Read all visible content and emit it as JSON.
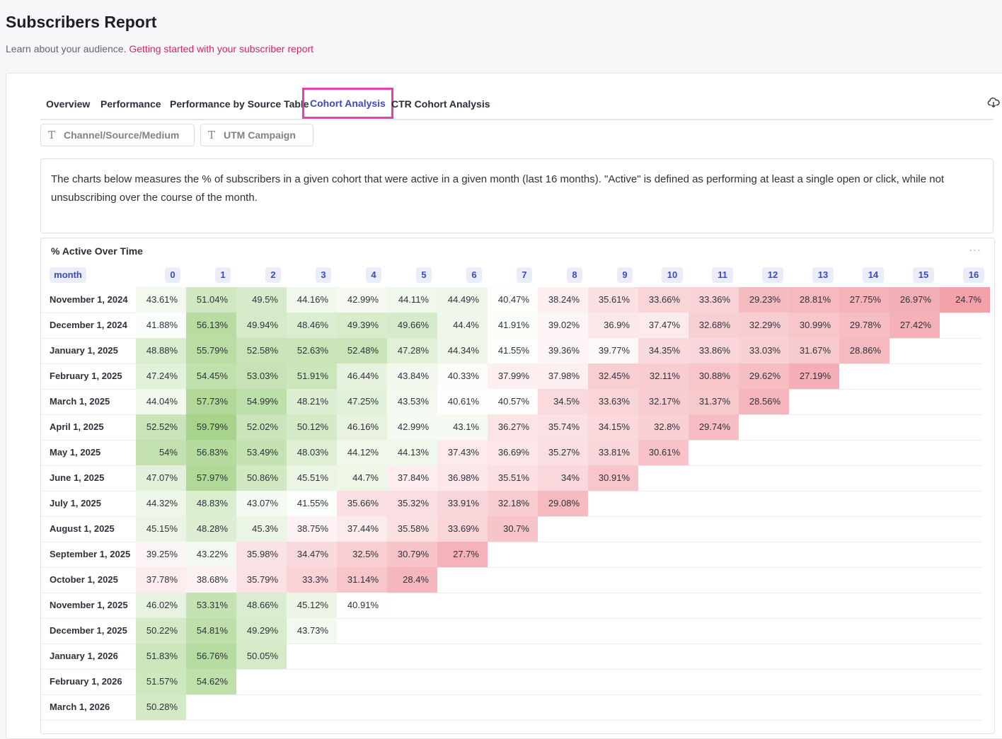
{
  "header": {
    "title": "Subscribers Report",
    "subtitle": "Learn about your audience.",
    "help_link": "Getting started with your subscriber report"
  },
  "tabs": [
    {
      "label": "Overview",
      "active": false
    },
    {
      "label": "Performance",
      "active": false
    },
    {
      "label": "Performance by Source Table",
      "active": false
    },
    {
      "label": "Cohort Analysis",
      "active": true
    },
    {
      "label": "CTR Cohort Analysis",
      "active": false
    }
  ],
  "toolbar": {
    "download_icon": "cloud-download-icon"
  },
  "filters": [
    {
      "placeholder": "Channel/Source/Medium",
      "icon": "text-type-icon"
    },
    {
      "placeholder": "UTM Campaign",
      "icon": "text-type-icon"
    }
  ],
  "description": "The charts below measures the % of subscribers in a given cohort that were active in a given month (last 16 months). \"Active\" is defined as performing at least a single open or click, while not unsubscribing over the course of the month.",
  "colors": {
    "accent": "#3f4bb5",
    "link": "#d6246e",
    "active_tab_outline": "#ec3fa9",
    "high": "#a9d48a",
    "mid": "#ffffff",
    "low": "#f2a0a8"
  },
  "chart_data": {
    "type": "heatmap",
    "title": "% Active Over Time",
    "row_header": "month",
    "columns": [
      "0",
      "1",
      "2",
      "3",
      "4",
      "5",
      "6",
      "7",
      "8",
      "9",
      "10",
      "11",
      "12",
      "13",
      "14",
      "15",
      "16"
    ],
    "rows": [
      {
        "label": "November 1, 2024",
        "values": [
          "43.61%",
          "51.04%",
          "49.5%",
          "44.16%",
          "42.99%",
          "44.11%",
          "44.49%",
          "40.47%",
          "38.24%",
          "35.61%",
          "33.66%",
          "33.36%",
          "29.23%",
          "28.81%",
          "27.75%",
          "26.97%",
          "24.7%"
        ]
      },
      {
        "label": "December 1, 2024",
        "values": [
          "41.88%",
          "56.13%",
          "49.94%",
          "48.46%",
          "49.39%",
          "49.66%",
          "44.4%",
          "41.91%",
          "39.02%",
          "36.9%",
          "37.47%",
          "32.68%",
          "32.29%",
          "30.99%",
          "29.78%",
          "27.42%"
        ]
      },
      {
        "label": "January 1, 2025",
        "values": [
          "48.88%",
          "55.79%",
          "52.58%",
          "52.63%",
          "52.48%",
          "47.28%",
          "44.34%",
          "41.55%",
          "39.36%",
          "39.77%",
          "34.35%",
          "33.86%",
          "33.03%",
          "31.67%",
          "28.86%"
        ]
      },
      {
        "label": "February 1, 2025",
        "values": [
          "47.24%",
          "54.45%",
          "53.03%",
          "51.91%",
          "46.44%",
          "43.84%",
          "40.33%",
          "37.99%",
          "37.98%",
          "32.45%",
          "32.11%",
          "30.88%",
          "29.62%",
          "27.19%"
        ]
      },
      {
        "label": "March 1, 2025",
        "values": [
          "44.04%",
          "57.73%",
          "54.99%",
          "48.21%",
          "47.25%",
          "43.53%",
          "40.61%",
          "40.57%",
          "34.5%",
          "33.63%",
          "32.17%",
          "31.37%",
          "28.56%"
        ]
      },
      {
        "label": "April 1, 2025",
        "values": [
          "52.52%",
          "59.79%",
          "52.02%",
          "50.12%",
          "46.16%",
          "42.99%",
          "43.1%",
          "36.27%",
          "35.74%",
          "34.15%",
          "32.8%",
          "29.74%"
        ]
      },
      {
        "label": "May 1, 2025",
        "values": [
          "54%",
          "56.83%",
          "53.49%",
          "48.03%",
          "44.12%",
          "44.13%",
          "37.43%",
          "36.69%",
          "35.27%",
          "33.81%",
          "30.61%"
        ]
      },
      {
        "label": "June 1, 2025",
        "values": [
          "47.07%",
          "57.97%",
          "50.86%",
          "45.51%",
          "44.7%",
          "37.84%",
          "36.98%",
          "35.51%",
          "34%",
          "30.91%"
        ]
      },
      {
        "label": "July 1, 2025",
        "values": [
          "44.32%",
          "48.83%",
          "43.07%",
          "41.55%",
          "35.66%",
          "35.32%",
          "33.91%",
          "32.18%",
          "29.08%"
        ]
      },
      {
        "label": "August 1, 2025",
        "values": [
          "45.15%",
          "48.28%",
          "45.3%",
          "38.75%",
          "37.44%",
          "35.58%",
          "33.69%",
          "30.7%"
        ]
      },
      {
        "label": "September 1, 2025",
        "values": [
          "39.25%",
          "43.22%",
          "35.98%",
          "34.47%",
          "32.5%",
          "30.79%",
          "27.7%"
        ]
      },
      {
        "label": "October 1, 2025",
        "values": [
          "37.78%",
          "38.68%",
          "35.79%",
          "33.3%",
          "31.14%",
          "28.4%"
        ]
      },
      {
        "label": "November 1, 2025",
        "values": [
          "46.02%",
          "53.31%",
          "48.66%",
          "45.12%",
          "40.91%"
        ]
      },
      {
        "label": "December 1, 2025",
        "values": [
          "50.22%",
          "54.81%",
          "49.29%",
          "43.73%"
        ]
      },
      {
        "label": "January 1, 2026",
        "values": [
          "51.83%",
          "56.76%",
          "50.05%"
        ]
      },
      {
        "label": "February 1, 2026",
        "values": [
          "51.57%",
          "54.62%"
        ]
      },
      {
        "label": "March 1, 2026",
        "values": [
          "50.28%"
        ]
      }
    ]
  }
}
